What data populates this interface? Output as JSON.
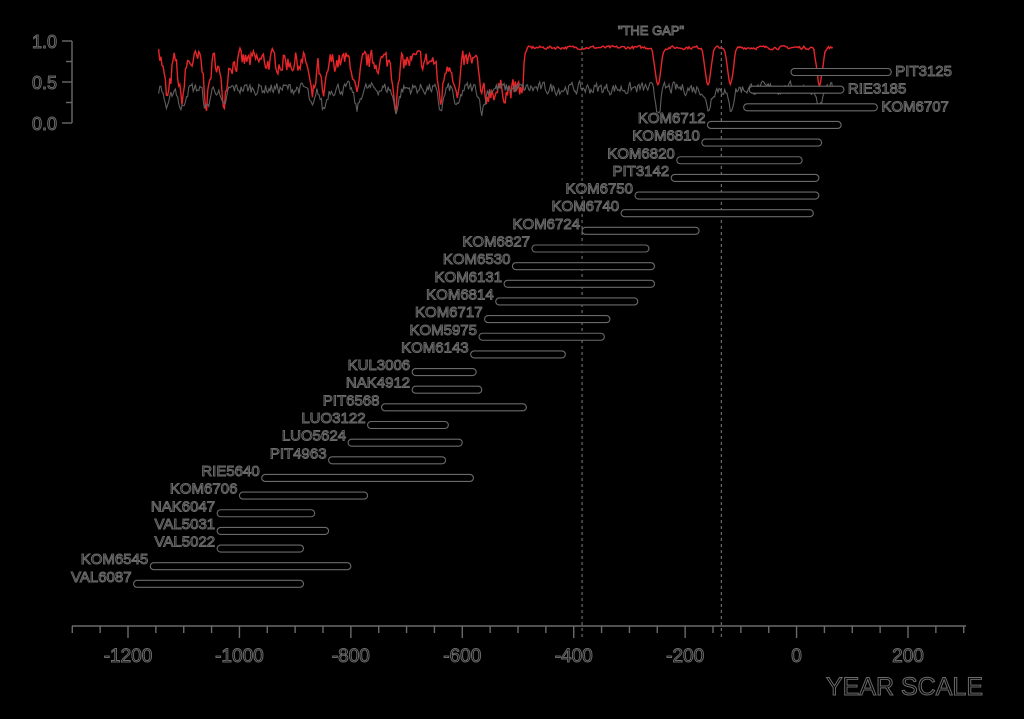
{
  "chart_data": {
    "type": "bar",
    "orientation": "horizontal-range",
    "xlabel": "YEAR SCALE",
    "xlim": [
      -1310,
      300
    ],
    "x_ticks": [
      -1200,
      -1000,
      -800,
      -600,
      -400,
      -200,
      0,
      200
    ],
    "x_tick_labels": [
      "-1200",
      "-1000",
      "-800",
      "-600",
      "-400",
      "-200",
      "0",
      "200"
    ],
    "annotation": "\"THE GAP\"",
    "gap_lines": [
      -385,
      -135
    ],
    "series": [
      {
        "name": "PIT3125",
        "start": -10,
        "end": 170
      },
      {
        "name": "RIE3185",
        "start": -85,
        "end": 85
      },
      {
        "name": "KOM6707",
        "start": -95,
        "end": 145
      },
      {
        "name": "KOM6712",
        "start": -160,
        "end": 80
      },
      {
        "name": "KOM6810",
        "start": -170,
        "end": 45
      },
      {
        "name": "KOM6820",
        "start": -215,
        "end": 10
      },
      {
        "name": "PIT3142",
        "start": -225,
        "end": 40
      },
      {
        "name": "KOM6750",
        "start": -290,
        "end": 40
      },
      {
        "name": "KOM6740",
        "start": -315,
        "end": 30
      },
      {
        "name": "KOM6724",
        "start": -385,
        "end": -175
      },
      {
        "name": "KOM6827",
        "start": -475,
        "end": -265
      },
      {
        "name": "KOM6530",
        "start": -510,
        "end": -255
      },
      {
        "name": "KOM6131",
        "start": -525,
        "end": -255
      },
      {
        "name": "KOM6814",
        "start": -540,
        "end": -285
      },
      {
        "name": "KOM6717",
        "start": -560,
        "end": -335
      },
      {
        "name": "KOM5975",
        "start": -570,
        "end": -345
      },
      {
        "name": "KOM6143",
        "start": -585,
        "end": -415
      },
      {
        "name": "KUL3006",
        "start": -690,
        "end": -575
      },
      {
        "name": "NAK4912",
        "start": -690,
        "end": -565
      },
      {
        "name": "PIT6568",
        "start": -745,
        "end": -485
      },
      {
        "name": "LUO3122",
        "start": -770,
        "end": -625
      },
      {
        "name": "LUO5624",
        "start": -805,
        "end": -600
      },
      {
        "name": "PIT4963",
        "start": -840,
        "end": -630
      },
      {
        "name": "RIE5640",
        "start": -960,
        "end": -580
      },
      {
        "name": "KOM6706",
        "start": -1000,
        "end": -770
      },
      {
        "name": "NAK6047",
        "start": -1040,
        "end": -865
      },
      {
        "name": "VAL5031",
        "start": -1040,
        "end": -840
      },
      {
        "name": "VAL5022",
        "start": -1040,
        "end": -885
      },
      {
        "name": "KOM6545",
        "start": -1160,
        "end": -800
      },
      {
        "name": "VAL6087",
        "start": -1190,
        "end": -885
      }
    ],
    "top_panel": {
      "y_ticks": [
        0.0,
        0.5,
        1.0
      ],
      "y_tick_labels": [
        "0.0",
        "0.5",
        "1.0"
      ],
      "ylim": [
        0,
        1
      ],
      "lines": [
        {
          "color": "#e8262a",
          "x_range": [
            -1145,
            65
          ],
          "base": 0.92
        },
        {
          "color": "#5f5f5f",
          "x_range": [
            -1145,
            65
          ],
          "base": 0.42
        }
      ]
    }
  }
}
